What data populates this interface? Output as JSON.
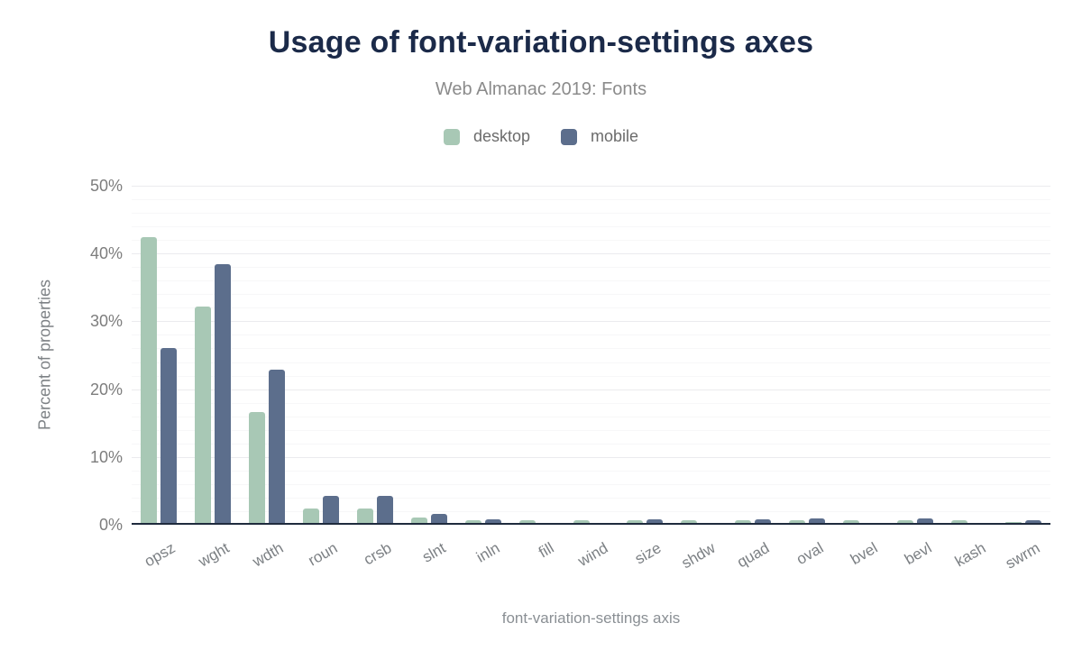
{
  "header": {
    "title": "Usage of font-variation-settings axes",
    "subtitle": "Web Almanac 2019: Fonts"
  },
  "legend": [
    {
      "label": "desktop",
      "color": "#a8c8b5"
    },
    {
      "label": "mobile",
      "color": "#5c6e8c"
    }
  ],
  "axes": {
    "ylabel": "Percent of properties",
    "xlabel": "font-variation-settings axis"
  },
  "colors": {
    "title": "#1b2a49",
    "subtitle_text": "#8b8b8b",
    "axis_text": "#7d7d7d",
    "desktop_bar": "#a8c8b5",
    "mobile_bar": "#5c6e8c",
    "baseline": "#1f2b3d",
    "gridline_major": "#ebebee",
    "gridline_minor": "#f7f7f8"
  },
  "chart_data": {
    "type": "bar",
    "title": "Usage of font-variation-settings axes",
    "subtitle": "Web Almanac 2019: Fonts",
    "xlabel": "font-variation-settings axis",
    "ylabel": "Percent of properties",
    "categories": [
      "opsz",
      "wght",
      "wdth",
      "roun",
      "crsb",
      "slnt",
      "inln",
      "fill",
      "wind",
      "size",
      "shdw",
      "quad",
      "oval",
      "bvel",
      "bevl",
      "kash",
      "swrm"
    ],
    "series": [
      {
        "name": "desktop",
        "color": "#a8c8b5",
        "values": [
          42.2,
          31.9,
          16.4,
          2.1,
          2.1,
          0.8,
          0.4,
          0.35,
          0.35,
          0.35,
          0.35,
          0.35,
          0.35,
          0.35,
          0.35,
          0.35,
          0.15
        ]
      },
      {
        "name": "mobile",
        "color": "#5c6e8c",
        "values": [
          25.8,
          38.2,
          22.6,
          4.0,
          4.0,
          1.3,
          0.6,
          0,
          0,
          0.6,
          0,
          0.6,
          0.65,
          0,
          0.65,
          0,
          0.35
        ]
      }
    ],
    "ylim": [
      0,
      50
    ],
    "yticks": [
      "0%",
      "10%",
      "20%",
      "30%",
      "40%",
      "50%"
    ],
    "ytick_values": [
      0,
      10,
      20,
      30,
      40,
      50
    ],
    "grid": {
      "major_step": 10,
      "minor_step": 2
    },
    "legend_position": "top"
  }
}
